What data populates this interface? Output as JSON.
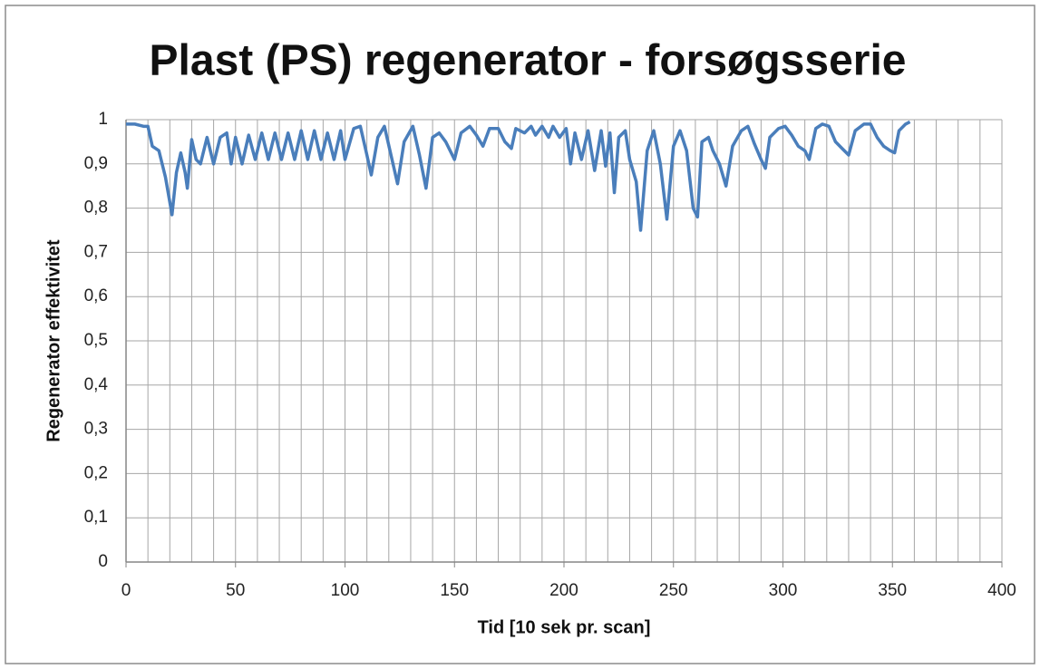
{
  "chart_data": {
    "type": "line",
    "title": "Plast (PS) regenerator - forsøgsserie",
    "x_label": "Tid [10 sek pr. scan]",
    "y_label": "Regenerator effektivitet",
    "x": [
      0,
      4,
      8,
      10,
      12,
      15,
      18,
      21,
      23,
      25,
      27,
      28,
      30,
      32,
      34,
      37,
      40,
      43,
      46,
      48,
      50,
      53,
      56,
      59,
      62,
      65,
      68,
      71,
      74,
      77,
      80,
      83,
      86,
      89,
      92,
      95,
      98,
      100,
      104,
      107,
      110,
      112,
      115,
      118,
      121,
      124,
      127,
      131,
      134,
      137,
      140,
      143,
      146,
      150,
      153,
      157,
      160,
      163,
      166,
      170,
      173,
      176,
      178,
      182,
      185,
      187,
      190,
      193,
      195,
      198,
      201,
      203,
      205,
      208,
      211,
      214,
      217,
      219,
      221,
      223,
      225,
      228,
      230,
      233,
      235,
      238,
      241,
      244,
      247,
      250,
      253,
      256,
      259,
      261,
      263,
      266,
      268,
      271,
      274,
      277,
      281,
      284,
      287,
      290,
      292,
      294,
      298,
      301,
      304,
      307,
      310,
      312,
      315,
      318,
      321,
      324,
      327,
      330,
      333,
      337,
      340,
      343,
      346,
      349,
      351,
      353,
      356,
      358
    ],
    "series": [
      {
        "name": "Regenerator effektivitet",
        "color": "#4a7ebb",
        "values": [
          0.99,
          0.99,
          0.985,
          0.985,
          0.94,
          0.93,
          0.87,
          0.785,
          0.88,
          0.925,
          0.88,
          0.845,
          0.955,
          0.91,
          0.9,
          0.96,
          0.9,
          0.96,
          0.97,
          0.9,
          0.96,
          0.9,
          0.965,
          0.91,
          0.97,
          0.91,
          0.97,
          0.91,
          0.97,
          0.91,
          0.975,
          0.91,
          0.975,
          0.91,
          0.97,
          0.91,
          0.975,
          0.91,
          0.98,
          0.985,
          0.92,
          0.875,
          0.96,
          0.985,
          0.92,
          0.855,
          0.95,
          0.985,
          0.92,
          0.845,
          0.96,
          0.97,
          0.95,
          0.91,
          0.97,
          0.985,
          0.965,
          0.94,
          0.98,
          0.98,
          0.95,
          0.935,
          0.98,
          0.97,
          0.985,
          0.965,
          0.985,
          0.96,
          0.985,
          0.96,
          0.98,
          0.9,
          0.97,
          0.91,
          0.975,
          0.885,
          0.975,
          0.895,
          0.97,
          0.835,
          0.96,
          0.975,
          0.91,
          0.86,
          0.75,
          0.93,
          0.975,
          0.9,
          0.775,
          0.94,
          0.975,
          0.93,
          0.8,
          0.78,
          0.95,
          0.96,
          0.93,
          0.9,
          0.85,
          0.94,
          0.975,
          0.985,
          0.945,
          0.91,
          0.89,
          0.96,
          0.98,
          0.985,
          0.965,
          0.94,
          0.93,
          0.91,
          0.98,
          0.99,
          0.985,
          0.95,
          0.935,
          0.92,
          0.975,
          0.99,
          0.99,
          0.96,
          0.94,
          0.93,
          0.925,
          0.975,
          0.99,
          0.995
        ]
      }
    ],
    "xlim": [
      0,
      400
    ],
    "xticks": [
      0,
      50,
      100,
      150,
      200,
      250,
      300,
      350,
      400
    ],
    "xgrid": [
      10,
      20,
      30,
      40,
      50,
      60,
      70,
      80,
      90,
      100,
      110,
      120,
      130,
      140,
      150,
      160,
      170,
      180,
      190,
      200,
      210,
      220,
      230,
      240,
      250,
      260,
      270,
      280,
      290,
      300,
      310,
      320,
      330,
      340,
      350,
      360,
      370,
      380,
      390,
      400
    ],
    "ylim": [
      0,
      1
    ],
    "yticks": [
      0,
      {
        "value": 0.1,
        "label": "0,1"
      },
      {
        "value": 0.2,
        "label": "0,2"
      },
      {
        "value": 0.3,
        "label": "0,3"
      },
      {
        "value": 0.4,
        "label": "0,4"
      },
      {
        "value": 0.5,
        "label": "0,5"
      },
      {
        "value": 0.6,
        "label": "0,6"
      },
      {
        "value": 0.7,
        "label": "0,7"
      },
      {
        "value": 0.8,
        "label": "0,8"
      },
      {
        "value": 0.9,
        "label": "0,9"
      },
      1
    ],
    "grid": true
  }
}
